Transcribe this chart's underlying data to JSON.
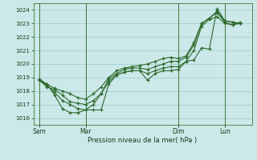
{
  "background_color": "#cce8e8",
  "grid_color": "#99cccc",
  "line_color": "#2d6a2d",
  "xlabel": "Pression niveau de la mer( hPa )",
  "ylim": [
    1015.5,
    1024.5
  ],
  "yticks": [
    1016,
    1017,
    1018,
    1019,
    1020,
    1021,
    1022,
    1023,
    1024
  ],
  "xtick_labels": [
    "Sam",
    "Mar",
    "Dim",
    "Lun"
  ],
  "xtick_positions": [
    0,
    24,
    72,
    96
  ],
  "vline_positions": [
    0,
    24,
    72,
    96
  ],
  "xlim": [
    -3,
    110
  ],
  "lines": [
    {
      "x": [
        0,
        4,
        8,
        12,
        16,
        20,
        24,
        28,
        32,
        36,
        40,
        44,
        48,
        52,
        56,
        60,
        64,
        68,
        72,
        76,
        80,
        84,
        88,
        92,
        96,
        100,
        104
      ],
      "y": [
        1018.8,
        1018.5,
        1017.7,
        1016.7,
        1016.4,
        1016.4,
        1016.6,
        1016.6,
        1016.6,
        1018.5,
        1019.2,
        1019.4,
        1019.5,
        1019.5,
        1018.8,
        1019.3,
        1019.5,
        1019.5,
        1019.6,
        1020.2,
        1020.3,
        1021.2,
        1021.1,
        1024.1,
        1023.2,
        1023.1,
        1023.0
      ]
    },
    {
      "x": [
        0,
        4,
        8,
        12,
        16,
        20,
        24,
        28,
        32,
        36,
        40,
        44,
        48,
        52,
        56,
        60,
        64,
        68,
        72,
        76,
        80,
        84,
        88,
        92,
        96,
        100,
        104
      ],
      "y": [
        1018.8,
        1018.3,
        1018.1,
        1017.7,
        1017.2,
        1017.1,
        1017.0,
        1017.3,
        1017.8,
        1018.7,
        1019.2,
        1019.4,
        1019.5,
        1019.5,
        1019.3,
        1019.5,
        1019.7,
        1019.8,
        1019.8,
        1020.2,
        1021.0,
        1022.8,
        1023.3,
        1023.5,
        1023.0,
        1022.9,
        1023.1
      ]
    },
    {
      "x": [
        0,
        4,
        8,
        12,
        16,
        20,
        24,
        28,
        32,
        36,
        40,
        44,
        48,
        52,
        56,
        60,
        64,
        68,
        72,
        76,
        80,
        84,
        88,
        92,
        96,
        100,
        104
      ],
      "y": [
        1018.8,
        1018.4,
        1017.9,
        1017.3,
        1017.0,
        1016.7,
        1016.6,
        1017.0,
        1017.8,
        1018.9,
        1019.3,
        1019.6,
        1019.7,
        1019.7,
        1019.6,
        1019.8,
        1020.0,
        1020.2,
        1020.2,
        1020.5,
        1021.4,
        1023.0,
        1023.4,
        1023.8,
        1023.1,
        1022.9,
        1023.0
      ]
    },
    {
      "x": [
        0,
        4,
        8,
        12,
        16,
        20,
        24,
        28,
        32,
        36,
        40,
        44,
        48,
        52,
        56,
        60,
        64,
        68,
        72,
        76,
        80,
        84,
        88,
        92,
        96,
        100,
        104
      ],
      "y": [
        1018.9,
        1018.5,
        1018.2,
        1018.0,
        1017.8,
        1017.5,
        1017.4,
        1017.8,
        1018.3,
        1019.0,
        1019.5,
        1019.7,
        1019.8,
        1019.9,
        1020.0,
        1020.2,
        1020.4,
        1020.5,
        1020.4,
        1020.6,
        1021.6,
        1023.0,
        1023.4,
        1023.9,
        1023.2,
        1023.1,
        1023.0
      ]
    }
  ]
}
